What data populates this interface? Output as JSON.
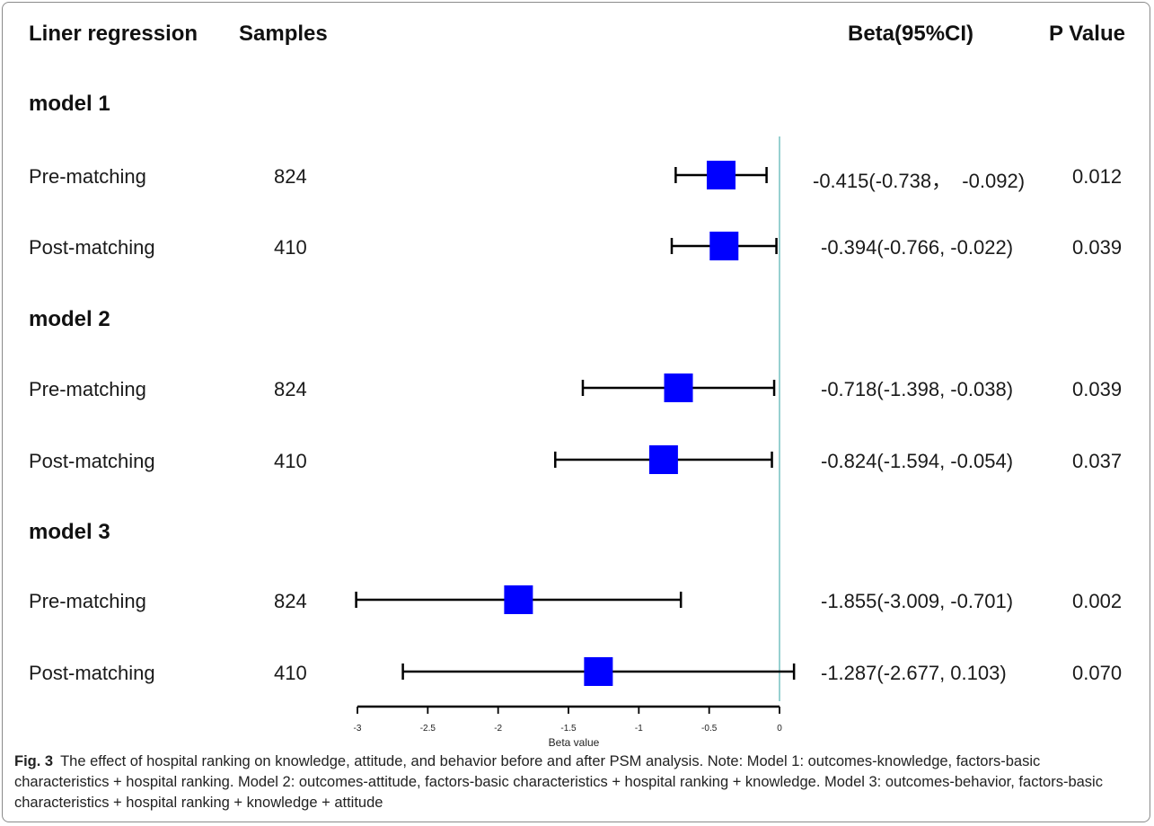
{
  "headers": {
    "col1": "Liner regression",
    "col2": "Samples",
    "col3": "Beta(95%CI)",
    "col4": "P Value"
  },
  "models": [
    {
      "label": "model 1",
      "rows": [
        {
          "group": "Pre-matching",
          "samples": "824",
          "ci_text": "-0.415(-0.738，  -0.092)",
          "p": "0.012"
        },
        {
          "group": "Post-matching",
          "samples": "410",
          "ci_text": "-0.394(-0.766, -0.022)",
          "p": "0.039"
        }
      ]
    },
    {
      "label": "model 2",
      "rows": [
        {
          "group": "Pre-matching",
          "samples": "824",
          "ci_text": "-0.718(-1.398, -0.038)",
          "p": "0.039"
        },
        {
          "group": "Post-matching",
          "samples": "410",
          "ci_text": "-0.824(-1.594, -0.054)",
          "p": "0.037"
        }
      ]
    },
    {
      "label": "model 3",
      "rows": [
        {
          "group": "Pre-matching",
          "samples": "824",
          "ci_text": "-1.855(-3.009, -0.701)",
          "p": "0.002"
        },
        {
          "group": "Post-matching",
          "samples": "410",
          "ci_text": "-1.287(-2.677, 0.103)",
          "p": "0.070"
        }
      ]
    }
  ],
  "chart_data": {
    "type": "forest",
    "xlabel": "Beta value",
    "xlim": [
      -3,
      0
    ],
    "xticks": [
      -3,
      -2.5,
      -2,
      -1.5,
      -1,
      -0.5,
      0
    ],
    "reference_line": 0,
    "colors": {
      "marker": "#0000ff",
      "whisker": "#000000",
      "reference": "#7fc4c4"
    },
    "series": [
      {
        "model": "model 1",
        "group": "Pre-matching",
        "beta": -0.415,
        "lower": -0.738,
        "upper": -0.092
      },
      {
        "model": "model 1",
        "group": "Post-matching",
        "beta": -0.394,
        "lower": -0.766,
        "upper": -0.022
      },
      {
        "model": "model 2",
        "group": "Pre-matching",
        "beta": -0.718,
        "lower": -1.398,
        "upper": -0.038
      },
      {
        "model": "model 2",
        "group": "Post-matching",
        "beta": -0.824,
        "lower": -1.594,
        "upper": -0.054
      },
      {
        "model": "model 3",
        "group": "Pre-matching",
        "beta": -1.855,
        "lower": -3.009,
        "upper": -0.701
      },
      {
        "model": "model 3",
        "group": "Post-matching",
        "beta": -1.287,
        "lower": -2.677,
        "upper": 0.103
      }
    ]
  },
  "caption": {
    "label": "Fig. 3",
    "text": "The effect of hospital ranking on knowledge, attitude, and behavior before and after PSM analysis. Note: Model 1: outcomes-knowledge, factors-basic characteristics + hospital ranking. Model 2: outcomes-attitude, factors-basic characteristics + hospital ranking + knowledge. Model 3: outcomes-behavior, factors-basic characteristics + hospital ranking + knowledge + attitude"
  }
}
